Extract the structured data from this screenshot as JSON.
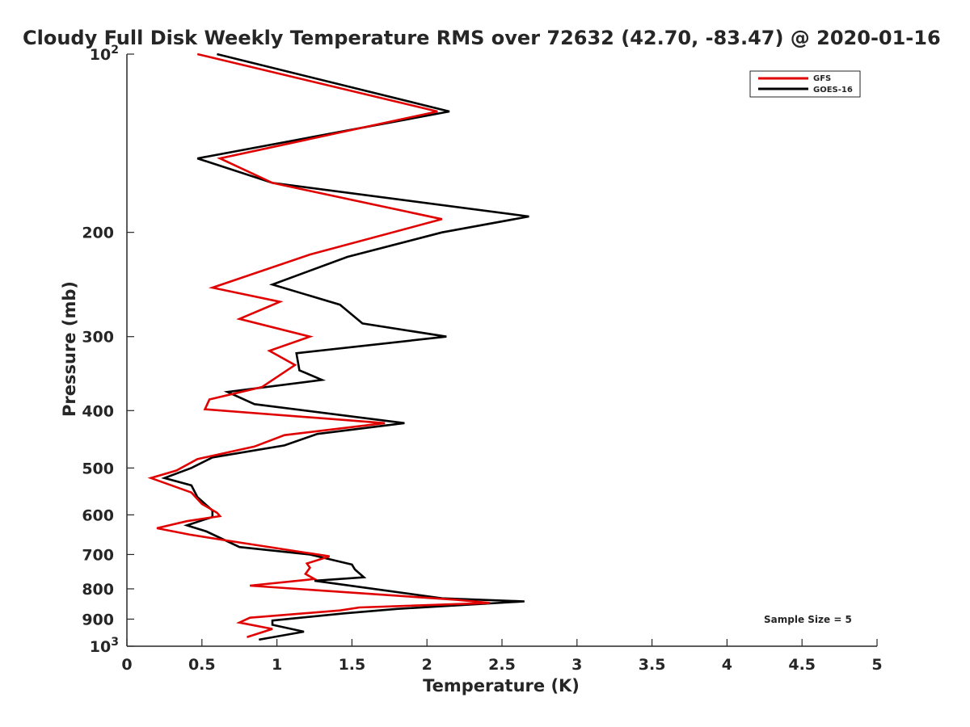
{
  "chart_data": {
    "type": "line",
    "title": "Cloudy Full Disk Weekly Temperature RMS over 72632 (42.70, -83.47) @ 2020-01-16",
    "xlabel": "Temperature (K)",
    "ylabel": "Pressure (mb)",
    "xlim": [
      0,
      5
    ],
    "ylim": [
      100,
      1000
    ],
    "yscale": "log",
    "y_reversed": true,
    "x_ticks": [
      "0",
      "0.5",
      "1",
      "1.5",
      "2",
      "2.5",
      "3",
      "3.5",
      "4",
      "4.5",
      "5"
    ],
    "y_ticks": [
      {
        "value": 100,
        "label": "10",
        "sup": "2"
      },
      {
        "value": 200,
        "label": "200"
      },
      {
        "value": 300,
        "label": "300"
      },
      {
        "value": 400,
        "label": "400"
      },
      {
        "value": 500,
        "label": "500"
      },
      {
        "value": 600,
        "label": "600"
      },
      {
        "value": 700,
        "label": "700"
      },
      {
        "value": 800,
        "label": "800"
      },
      {
        "value": 900,
        "label": "900"
      },
      {
        "value": 1000,
        "label": "10",
        "sup": "3"
      }
    ],
    "legend_position": "top-right",
    "grid": false,
    "annotation": "Sample Size = 5",
    "series": [
      {
        "name": "GFS",
        "color": "#e00000",
        "points": [
          [
            0.47,
            100
          ],
          [
            2.07,
            125
          ],
          [
            0.62,
            150
          ],
          [
            0.97,
            165
          ],
          [
            2.1,
            190
          ],
          [
            1.22,
            218
          ],
          [
            0.57,
            248
          ],
          [
            1.02,
            262
          ],
          [
            0.75,
            280
          ],
          [
            1.22,
            300
          ],
          [
            0.95,
            317
          ],
          [
            1.12,
            335
          ],
          [
            0.9,
            365
          ],
          [
            0.55,
            383
          ],
          [
            0.52,
            398
          ],
          [
            1.72,
            420
          ],
          [
            1.05,
            440
          ],
          [
            0.85,
            460
          ],
          [
            0.47,
            483
          ],
          [
            0.33,
            505
          ],
          [
            0.16,
            520
          ],
          [
            0.43,
            550
          ],
          [
            0.5,
            575
          ],
          [
            0.6,
            595
          ],
          [
            0.62,
            603
          ],
          [
            0.4,
            615
          ],
          [
            0.2,
            632
          ],
          [
            0.42,
            648
          ],
          [
            0.7,
            665
          ],
          [
            1.35,
            705
          ],
          [
            1.2,
            725
          ],
          [
            1.22,
            737
          ],
          [
            1.19,
            755
          ],
          [
            1.25,
            770
          ],
          [
            0.82,
            790
          ],
          [
            2.2,
            835
          ],
          [
            2.42,
            845
          ],
          [
            1.55,
            860
          ],
          [
            1.42,
            870
          ],
          [
            0.82,
            895
          ],
          [
            0.75,
            912
          ],
          [
            0.97,
            935
          ],
          [
            0.8,
            965
          ]
        ]
      },
      {
        "name": "GOES-16",
        "color": "#000000",
        "points": [
          [
            0.6,
            100
          ],
          [
            2.15,
            125
          ],
          [
            0.47,
            150
          ],
          [
            0.97,
            165
          ],
          [
            2.68,
            188
          ],
          [
            2.1,
            200
          ],
          [
            1.47,
            220
          ],
          [
            0.97,
            245
          ],
          [
            1.42,
            265
          ],
          [
            1.57,
            285
          ],
          [
            2.13,
            300
          ],
          [
            1.13,
            320
          ],
          [
            1.15,
            342
          ],
          [
            1.3,
            355
          ],
          [
            0.67,
            372
          ],
          [
            0.85,
            390
          ],
          [
            1.85,
            420
          ],
          [
            1.27,
            438
          ],
          [
            1.05,
            458
          ],
          [
            0.57,
            480
          ],
          [
            0.43,
            500
          ],
          [
            0.25,
            520
          ],
          [
            0.43,
            535
          ],
          [
            0.47,
            560
          ],
          [
            0.57,
            590
          ],
          [
            0.57,
            605
          ],
          [
            0.4,
            625
          ],
          [
            0.53,
            640
          ],
          [
            0.75,
            680
          ],
          [
            1.22,
            700
          ],
          [
            1.5,
            728
          ],
          [
            1.52,
            742
          ],
          [
            1.58,
            765
          ],
          [
            1.25,
            775
          ],
          [
            2.1,
            830
          ],
          [
            2.65,
            840
          ],
          [
            1.8,
            865
          ],
          [
            1.45,
            880
          ],
          [
            0.97,
            905
          ],
          [
            0.97,
            920
          ],
          [
            1.18,
            945
          ],
          [
            0.88,
            975
          ]
        ]
      }
    ]
  }
}
